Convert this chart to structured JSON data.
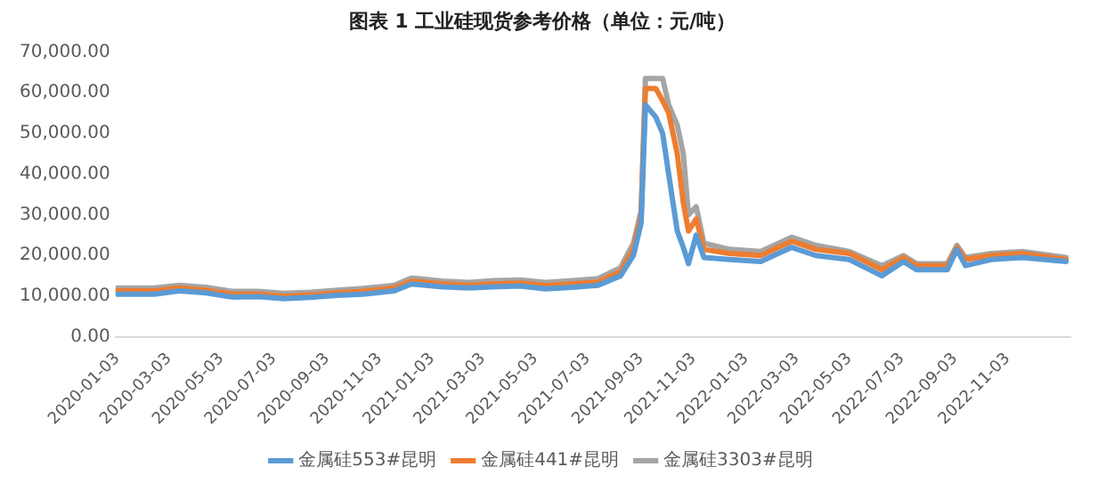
{
  "chart_data": {
    "type": "line",
    "title": "图表 1 工业硅现货参考价格（单位：元/吨）",
    "x": [
      "2020-01-03",
      "2020-02-15",
      "2020-03-15",
      "2020-04-15",
      "2020-05-15",
      "2020-06-15",
      "2020-07-15",
      "2020-08-15",
      "2020-09-15",
      "2020-10-15",
      "2020-11-20",
      "2020-12-10",
      "2021-01-15",
      "2021-02-15",
      "2021-03-15",
      "2021-04-15",
      "2021-05-15",
      "2021-06-15",
      "2021-07-15",
      "2021-08-10",
      "2021-08-25",
      "2021-09-03",
      "2021-09-08",
      "2021-09-20",
      "2021-09-28",
      "2021-10-05",
      "2021-10-15",
      "2021-10-22",
      "2021-10-28",
      "2021-11-06",
      "2021-11-15",
      "2021-12-15",
      "2022-01-20",
      "2022-02-25",
      "2022-03-25",
      "2022-05-03",
      "2022-06-10",
      "2022-07-05",
      "2022-07-20",
      "2022-08-25",
      "2022-09-05",
      "2022-09-15",
      "2022-10-15",
      "2022-11-20",
      "2023-01-10"
    ],
    "series": [
      {
        "name": "金属硅553#昆明",
        "color": "#5b9bd5",
        "values": [
          10500,
          10500,
          11300,
          10800,
          9800,
          9900,
          9400,
          9700,
          10200,
          10500,
          11300,
          13000,
          12300,
          12000,
          12300,
          12500,
          11800,
          12200,
          12700,
          15000,
          20000,
          28000,
          57000,
          54000,
          50000,
          40000,
          26000,
          22000,
          18000,
          25000,
          19500,
          19000,
          18500,
          22000,
          20000,
          19000,
          15000,
          18500,
          16500,
          16500,
          21500,
          17500,
          19000,
          19500,
          18500
        ]
      },
      {
        "name": "金属硅441#昆明",
        "color": "#ed7d31",
        "values": [
          11300,
          11300,
          12000,
          11500,
          10500,
          10500,
          10000,
          10300,
          10800,
          11200,
          12000,
          13700,
          13000,
          12700,
          13000,
          13200,
          12600,
          13000,
          13500,
          16000,
          21500,
          30000,
          61000,
          61000,
          58000,
          55000,
          45000,
          33000,
          26000,
          29000,
          21500,
          20500,
          20000,
          23500,
          21500,
          20500,
          16500,
          19500,
          17500,
          17500,
          22000,
          19000,
          20000,
          20500,
          19000
        ]
      },
      {
        "name": "金属硅3303#昆明",
        "color": "#a5a5a5",
        "values": [
          12000,
          12000,
          12700,
          12200,
          11200,
          11200,
          10700,
          11000,
          11500,
          11900,
          12700,
          14500,
          13700,
          13400,
          13800,
          14000,
          13400,
          13800,
          14300,
          17000,
          23000,
          31000,
          63500,
          63500,
          63500,
          57000,
          52000,
          45000,
          30000,
          32000,
          23000,
          21500,
          21000,
          24500,
          22500,
          21000,
          17500,
          20000,
          18000,
          18000,
          22500,
          19500,
          20500,
          21000,
          19500
        ]
      }
    ],
    "xlim": [
      "2020-01-01",
      "2023-01-15"
    ],
    "xticks": [
      "2020-01-03",
      "2020-03-03",
      "2020-05-03",
      "2020-07-03",
      "2020-09-03",
      "2020-11-03",
      "2021-01-03",
      "2021-03-03",
      "2021-05-03",
      "2021-07-03",
      "2021-09-03",
      "2021-11-03",
      "2022-01-03",
      "2022-03-03",
      "2022-05-03",
      "2022-07-03",
      "2022-09-03",
      "2022-11-03"
    ],
    "ylim": [
      0,
      70000
    ],
    "yticks": [
      {
        "value": 0,
        "label": "0.00"
      },
      {
        "value": 10000,
        "label": "10,000.00"
      },
      {
        "value": 20000,
        "label": "20,000.00"
      },
      {
        "value": 30000,
        "label": "30,000.00"
      },
      {
        "value": 40000,
        "label": "40,000.00"
      },
      {
        "value": 50000,
        "label": "50,000.00"
      },
      {
        "value": 60000,
        "label": "60,000.00"
      },
      {
        "value": 70000,
        "label": "70,000.00"
      }
    ],
    "grid": false,
    "legend": "bottom",
    "marker": "none",
    "line_style": "solid"
  }
}
